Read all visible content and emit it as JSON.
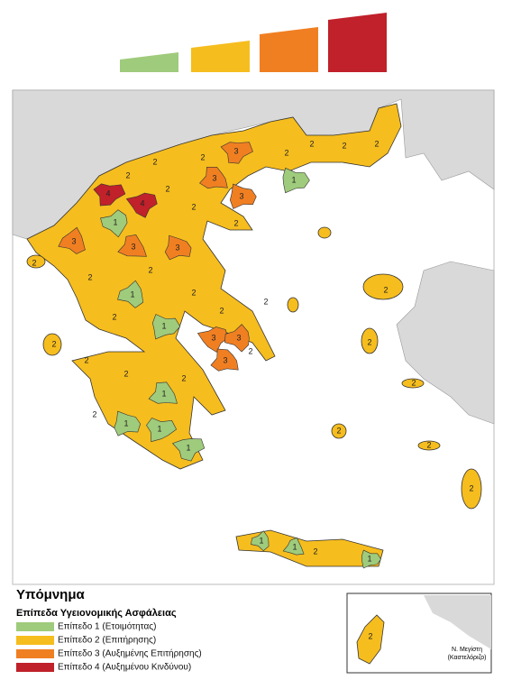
{
  "legend": {
    "title": "Υπόμνημα",
    "subtitle": "Επίπεδα Υγειονομικής Ασφάλειας",
    "items": [
      {
        "label": "Επίπεδο 1 (Ετοιμότητας)",
        "color": "#9fcb7c"
      },
      {
        "label": "Επίπεδο 2 (Επιτήρησης)",
        "color": "#f6bd1e"
      },
      {
        "label": "Επίπεδο 3 (Αυξημένης Επιτήρησης)",
        "color": "#f07f22"
      },
      {
        "label": "Επίπεδο 4 (Αυξημένου Κινδύνου)",
        "color": "#c0212a"
      }
    ]
  },
  "inset": {
    "caption": [
      "Ν. Μεγίστη",
      "(Καστελόριζο)"
    ],
    "level": 2
  },
  "map": {
    "regions": [
      {
        "level": 2
      },
      {
        "level": 2
      },
      {
        "level": 3
      },
      {
        "level": 2
      },
      {
        "level": 2
      },
      {
        "level": 2
      },
      {
        "level": 2
      },
      {
        "level": 1
      },
      {
        "level": 4
      },
      {
        "level": 4
      },
      {
        "level": 2
      },
      {
        "level": 2
      },
      {
        "level": 3
      },
      {
        "level": 3
      },
      {
        "level": 2
      },
      {
        "level": 2
      },
      {
        "level": 1
      },
      {
        "level": 3
      },
      {
        "level": 3
      },
      {
        "level": 3
      },
      {
        "level": 2
      },
      {
        "level": 2
      },
      {
        "level": 2
      },
      {
        "level": 1
      },
      {
        "level": 2
      },
      {
        "level": 2
      },
      {
        "level": 1
      },
      {
        "level": 2
      },
      {
        "level": 3
      },
      {
        "level": 3
      },
      {
        "level": 2
      },
      {
        "level": 3
      },
      {
        "level": 2
      },
      {
        "level": 2
      },
      {
        "level": 2
      },
      {
        "level": 2
      },
      {
        "level": 2
      },
      {
        "level": 1
      },
      {
        "level": 1
      },
      {
        "level": 1
      },
      {
        "level": 1
      },
      {
        "level": 2
      },
      {
        "level": 2
      },
      {
        "level": 2
      },
      {
        "level": 2
      },
      {
        "level": 2
      },
      {
        "level": 2
      },
      {
        "level": 2
      },
      {
        "level": 1
      },
      {
        "level": 1
      },
      {
        "level": 2
      },
      {
        "level": 1
      }
    ]
  }
}
